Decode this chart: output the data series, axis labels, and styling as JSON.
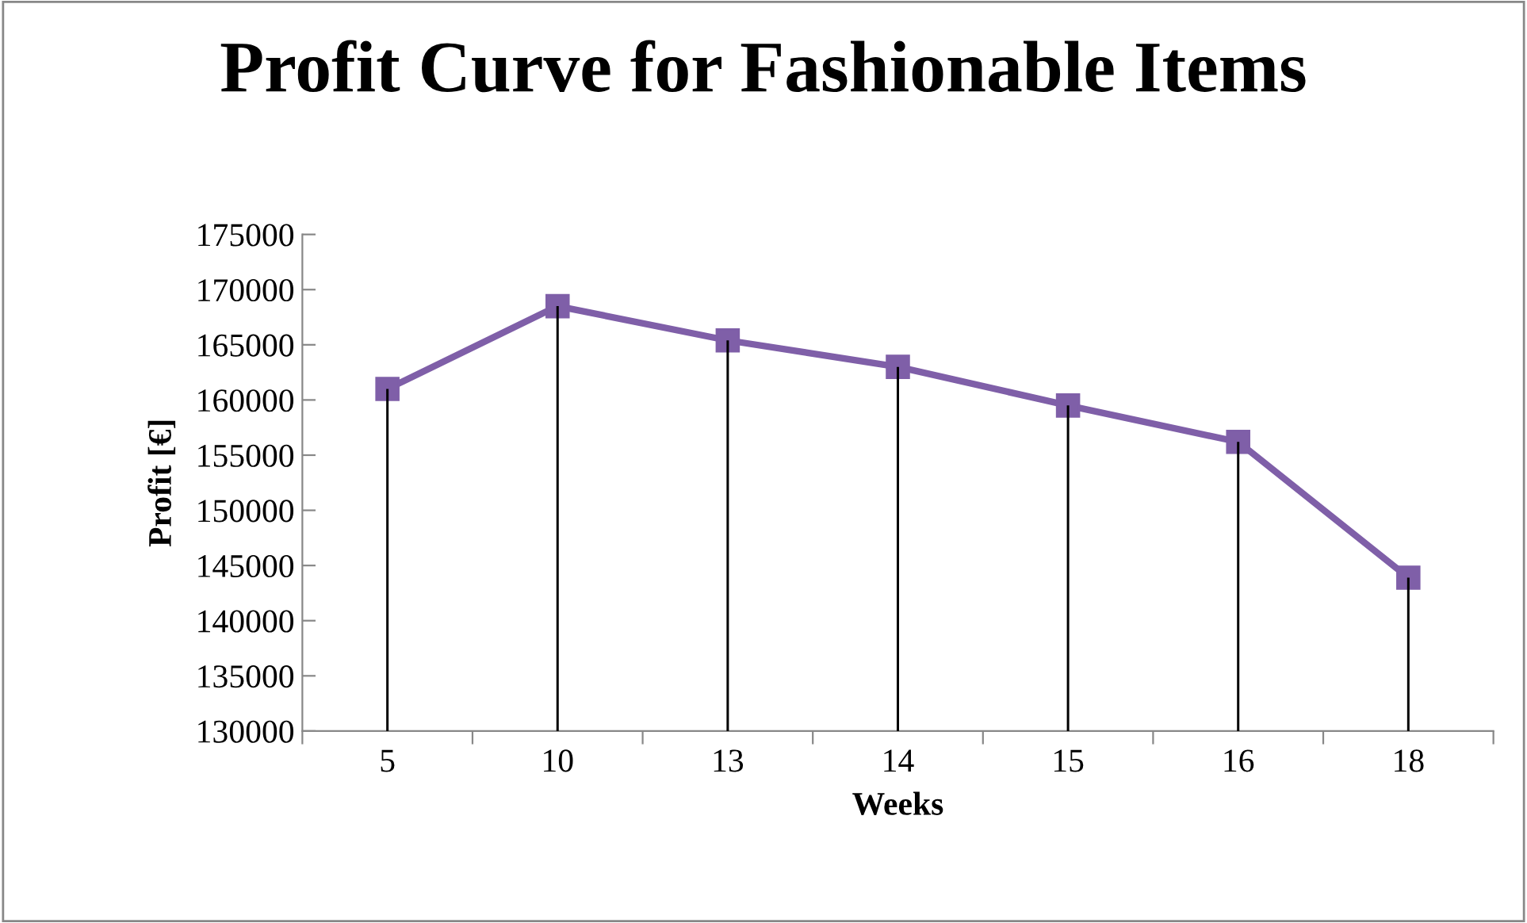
{
  "chart_data": {
    "type": "line",
    "title": "Profit Curve for Fashionable Items",
    "xlabel": "Weeks",
    "ylabel": "Profit [€]",
    "categories": [
      "5",
      "10",
      "13",
      "14",
      "15",
      "16",
      "18"
    ],
    "series": [
      {
        "color": "#7f5fa8",
        "values": [
          161000,
          168500,
          165400,
          163000,
          159500,
          156200,
          143900
        ]
      },
      {
        "type": "bar",
        "color": "#000000",
        "values": [
          161000,
          168500,
          165400,
          163000,
          159500,
          156200,
          143900
        ]
      }
    ],
    "ylim": [
      130000,
      175000
    ],
    "yticks": [
      130000,
      135000,
      140000,
      145000,
      150000,
      155000,
      160000,
      165000,
      170000,
      175000
    ],
    "marker": "square",
    "line_style": "solid",
    "grid": false,
    "legend": false
  }
}
